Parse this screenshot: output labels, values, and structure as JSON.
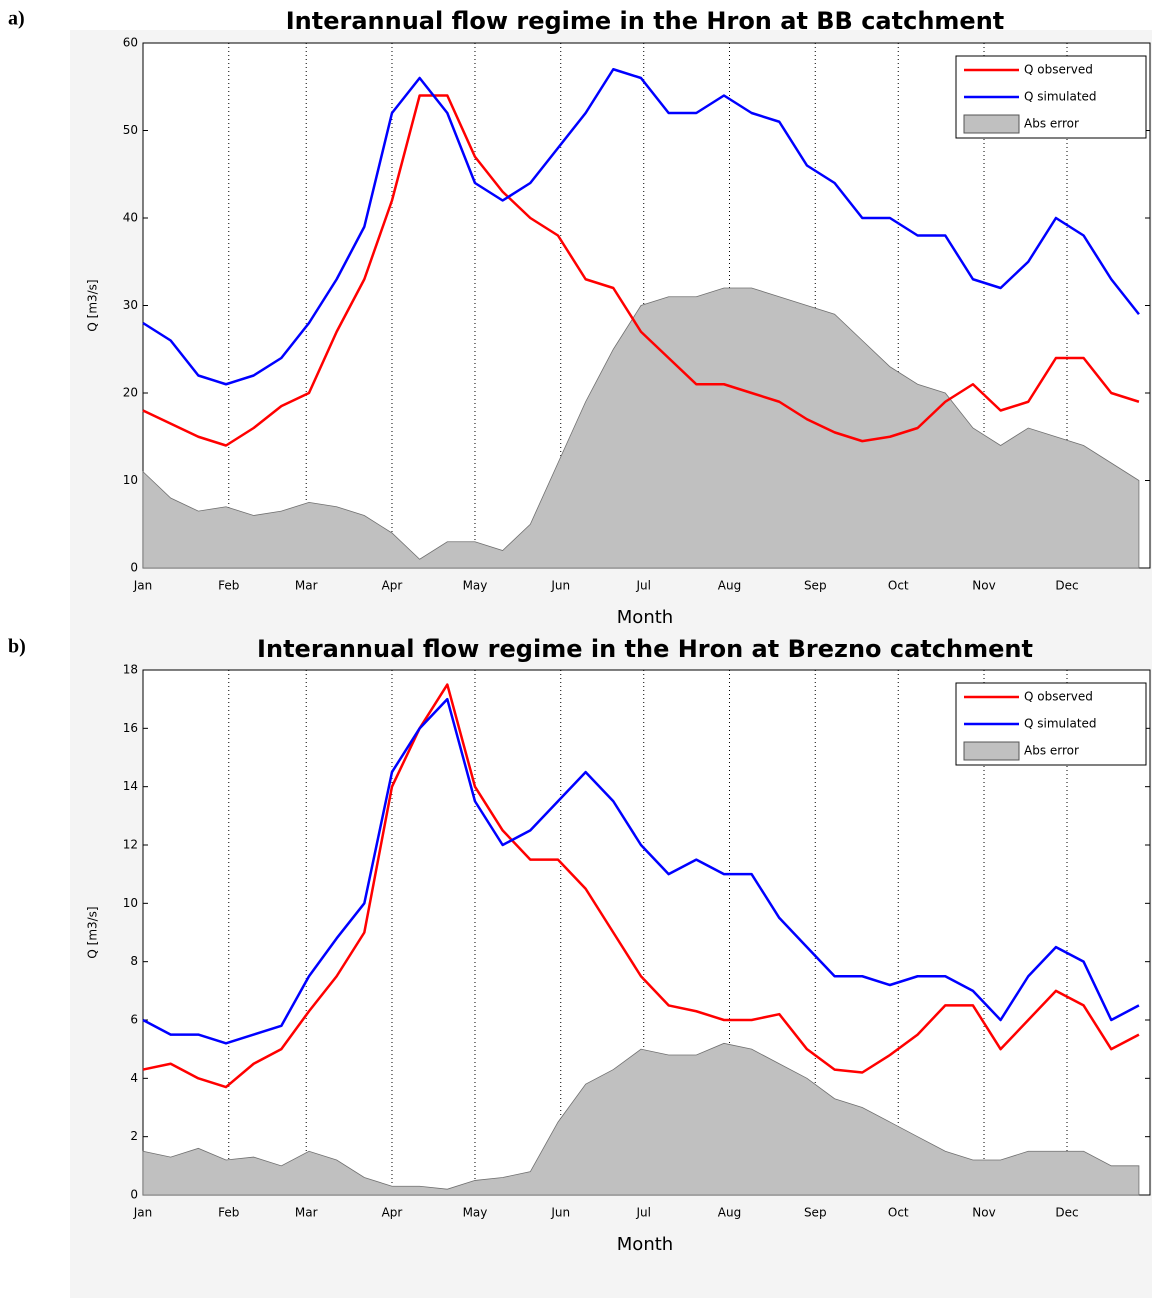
{
  "chart_data": [
    {
      "type": "line",
      "label": "a)",
      "title": "Interannual flow regime in the Hron at BB catchment",
      "xlabel": "Month",
      "ylabel": "Q [m3/s]",
      "legend": "upper right",
      "grid": "x",
      "x": [
        1,
        11,
        21,
        31,
        41,
        51,
        61,
        71,
        81,
        91,
        101,
        111,
        121,
        131,
        141,
        151,
        161,
        171,
        181,
        191,
        201,
        211,
        221,
        231,
        241,
        251,
        261,
        271,
        281,
        291,
        301,
        311,
        321,
        331,
        341,
        351,
        361
      ],
      "xlim": [
        1,
        365
      ],
      "xticks": [
        {
          "value": 1,
          "label": "Jan"
        },
        {
          "value": 32,
          "label": "Feb"
        },
        {
          "value": 60,
          "label": "Mar"
        },
        {
          "value": 91,
          "label": "Apr"
        },
        {
          "value": 121,
          "label": "May"
        },
        {
          "value": 152,
          "label": "Jun"
        },
        {
          "value": 182,
          "label": "Jul"
        },
        {
          "value": 213,
          "label": "Aug"
        },
        {
          "value": 244,
          "label": "Sep"
        },
        {
          "value": 274,
          "label": "Oct"
        },
        {
          "value": 305,
          "label": "Nov"
        },
        {
          "value": 335,
          "label": "Dec"
        }
      ],
      "ylim": [
        0,
        60
      ],
      "yticks": [
        0,
        10,
        20,
        30,
        40,
        50,
        60
      ],
      "series": [
        {
          "name": "Q observed",
          "color": "#ff0000",
          "kind": "line",
          "values": [
            18,
            16.5,
            15,
            14,
            16,
            18.5,
            20,
            27,
            33,
            42,
            54,
            54,
            47,
            43,
            40,
            38,
            33,
            32,
            27,
            24,
            21,
            21,
            20,
            19,
            17,
            15.5,
            14.5,
            15,
            16,
            19,
            21,
            18,
            19,
            24,
            24,
            20,
            19
          ]
        },
        {
          "name": "Q simulated",
          "color": "#0000ff",
          "kind": "line",
          "values": [
            28,
            26,
            22,
            21,
            22,
            24,
            28,
            33,
            39,
            52,
            56,
            52,
            44,
            42,
            44,
            48,
            52,
            57,
            56,
            52,
            52,
            54,
            52,
            51,
            46,
            44,
            40,
            40,
            38,
            38,
            33,
            32,
            35,
            40,
            38,
            33,
            29
          ]
        },
        {
          "name": "Abs error",
          "color": "#c0c0c0",
          "kind": "area",
          "values": [
            11,
            8,
            6.5,
            7,
            6,
            6.5,
            7.5,
            7,
            6,
            4,
            1,
            3,
            3,
            2,
            5,
            12,
            19,
            25,
            30,
            31,
            31,
            32,
            32,
            31,
            30,
            29,
            26,
            23,
            21,
            20,
            16,
            14,
            16,
            15,
            14,
            12,
            10
          ]
        }
      ]
    },
    {
      "type": "line",
      "label": "b)",
      "title": "Interannual flow regime in the Hron at Brezno catchment",
      "xlabel": "Month",
      "ylabel": "Q [m3/s]",
      "legend": "upper right",
      "grid": "x",
      "x": [
        1,
        11,
        21,
        31,
        41,
        51,
        61,
        71,
        81,
        91,
        101,
        111,
        121,
        131,
        141,
        151,
        161,
        171,
        181,
        191,
        201,
        211,
        221,
        231,
        241,
        251,
        261,
        271,
        281,
        291,
        301,
        311,
        321,
        331,
        341,
        351,
        361
      ],
      "xlim": [
        1,
        365
      ],
      "xticks": [
        {
          "value": 1,
          "label": "Jan"
        },
        {
          "value": 32,
          "label": "Feb"
        },
        {
          "value": 60,
          "label": "Mar"
        },
        {
          "value": 91,
          "label": "Apr"
        },
        {
          "value": 121,
          "label": "May"
        },
        {
          "value": 152,
          "label": "Jun"
        },
        {
          "value": 182,
          "label": "Jul"
        },
        {
          "value": 213,
          "label": "Aug"
        },
        {
          "value": 244,
          "label": "Sep"
        },
        {
          "value": 274,
          "label": "Oct"
        },
        {
          "value": 305,
          "label": "Nov"
        },
        {
          "value": 335,
          "label": "Dec"
        }
      ],
      "ylim": [
        0,
        18
      ],
      "yticks": [
        0,
        2,
        4,
        6,
        8,
        10,
        12,
        14,
        16,
        18
      ],
      "series": [
        {
          "name": "Q observed",
          "color": "#ff0000",
          "kind": "line",
          "values": [
            4.3,
            4.5,
            4,
            3.7,
            4.5,
            5,
            6.3,
            7.5,
            9,
            14,
            16,
            17.5,
            14,
            12.5,
            11.5,
            11.5,
            10.5,
            9,
            7.5,
            6.5,
            6.3,
            6,
            6,
            6.2,
            5,
            4.3,
            4.2,
            4.8,
            5.5,
            6.5,
            6.5,
            5,
            6,
            7,
            6.5,
            5,
            5.5
          ]
        },
        {
          "name": "Q simulated",
          "color": "#0000ff",
          "kind": "line",
          "values": [
            6,
            5.5,
            5.5,
            5.2,
            5.5,
            5.8,
            7.5,
            8.8,
            10,
            14.5,
            16,
            17,
            13.5,
            12,
            12.5,
            13.5,
            14.5,
            13.5,
            12,
            11,
            11.5,
            11,
            11,
            9.5,
            8.5,
            7.5,
            7.5,
            7.2,
            7.5,
            7.5,
            7,
            6,
            7.5,
            8.5,
            8,
            6,
            6.5
          ]
        },
        {
          "name": "Abs error",
          "color": "#c0c0c0",
          "kind": "area",
          "values": [
            1.5,
            1.3,
            1.6,
            1.2,
            1.3,
            1,
            1.5,
            1.2,
            0.6,
            0.3,
            0.3,
            0.2,
            0.5,
            0.6,
            0.8,
            2.5,
            3.8,
            4.3,
            5,
            4.8,
            4.8,
            5.2,
            5,
            4.5,
            4,
            3.3,
            3,
            2.5,
            2,
            1.5,
            1.2,
            1.2,
            1.5,
            1.5,
            1.5,
            1,
            1
          ]
        }
      ]
    }
  ]
}
